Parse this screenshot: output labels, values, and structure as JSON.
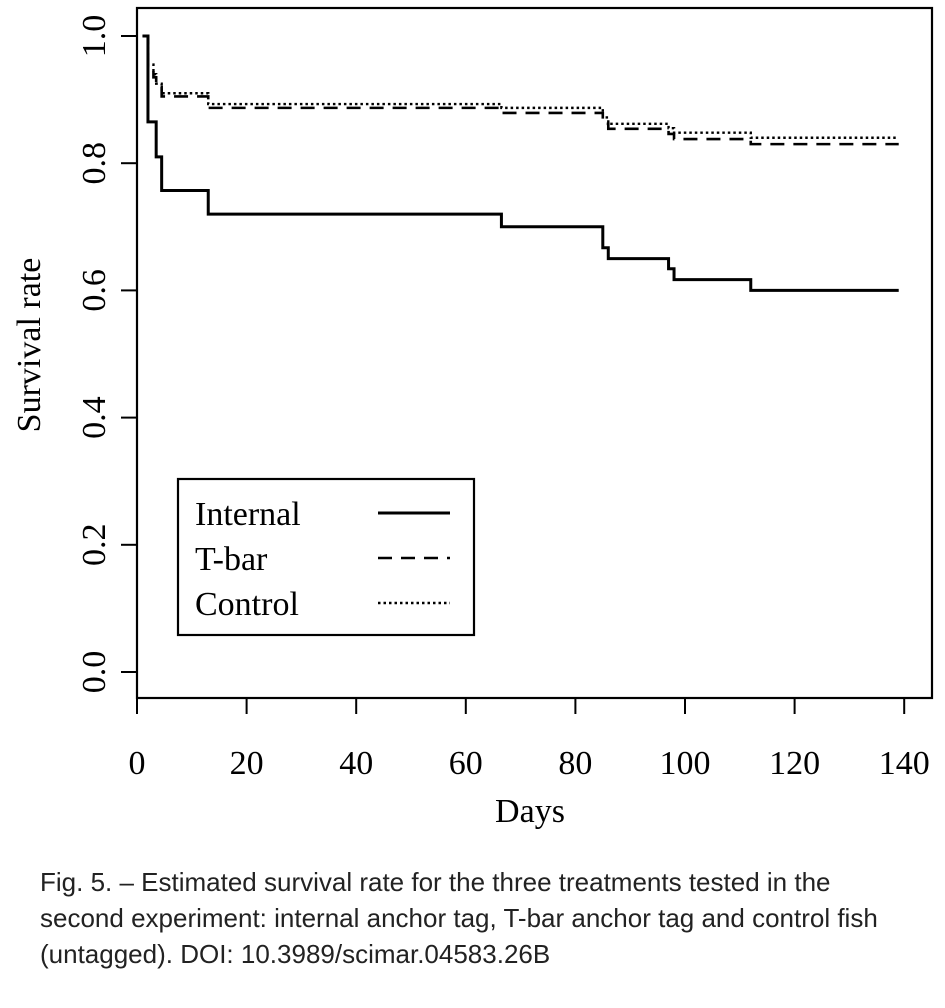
{
  "chart_data": {
    "type": "line",
    "title": "",
    "xlabel": "Days",
    "ylabel": "Survival rate",
    "xlim": [
      0,
      140
    ],
    "ylim": [
      0,
      1.0
    ],
    "x_ticks": [
      "0",
      "20",
      "40",
      "60",
      "80",
      "100",
      "120",
      "140"
    ],
    "y_ticks": [
      "0.0",
      "0.2",
      "0.4",
      "0.6",
      "0.8",
      "1.0"
    ],
    "grid": false,
    "legend_position": "bottom-left",
    "series": [
      {
        "name": "Internal",
        "style": "solid",
        "steps": [
          [
            1,
            1.0
          ],
          [
            2,
            0.865
          ],
          [
            3.5,
            0.81
          ],
          [
            4.5,
            0.757
          ],
          [
            13,
            0.72
          ],
          [
            66.5,
            0.7
          ],
          [
            85,
            0.667
          ],
          [
            86,
            0.65
          ],
          [
            97,
            0.634
          ],
          [
            98,
            0.617
          ],
          [
            112,
            0.6
          ],
          [
            139,
            0.6
          ]
        ]
      },
      {
        "name": "T-bar",
        "style": "dashed",
        "steps": [
          [
            1,
            1.0
          ],
          [
            2,
            0.95
          ],
          [
            3,
            0.935
          ],
          [
            3.5,
            0.92
          ],
          [
            4.5,
            0.905
          ],
          [
            13,
            0.887
          ],
          [
            66.5,
            0.879
          ],
          [
            85,
            0.862
          ],
          [
            86,
            0.854
          ],
          [
            97,
            0.846
          ],
          [
            98,
            0.838
          ],
          [
            112,
            0.83
          ],
          [
            139,
            0.83
          ]
        ]
      },
      {
        "name": "Control",
        "style": "dotted",
        "steps": [
          [
            1,
            1.0
          ],
          [
            2,
            0.955
          ],
          [
            3,
            0.94
          ],
          [
            3.5,
            0.925
          ],
          [
            4.5,
            0.91
          ],
          [
            13,
            0.893
          ],
          [
            66.5,
            0.887
          ],
          [
            85,
            0.872
          ],
          [
            86,
            0.862
          ],
          [
            97,
            0.855
          ],
          [
            98,
            0.848
          ],
          [
            112,
            0.84
          ],
          [
            139,
            0.84
          ]
        ]
      }
    ]
  },
  "caption": "Fig. 5. – Estimated survival rate for the three treatments tested in the second experiment: internal anchor tag, T-bar anchor tag and control fish (untagged). DOI: 10.3989/scimar.04583.26B"
}
